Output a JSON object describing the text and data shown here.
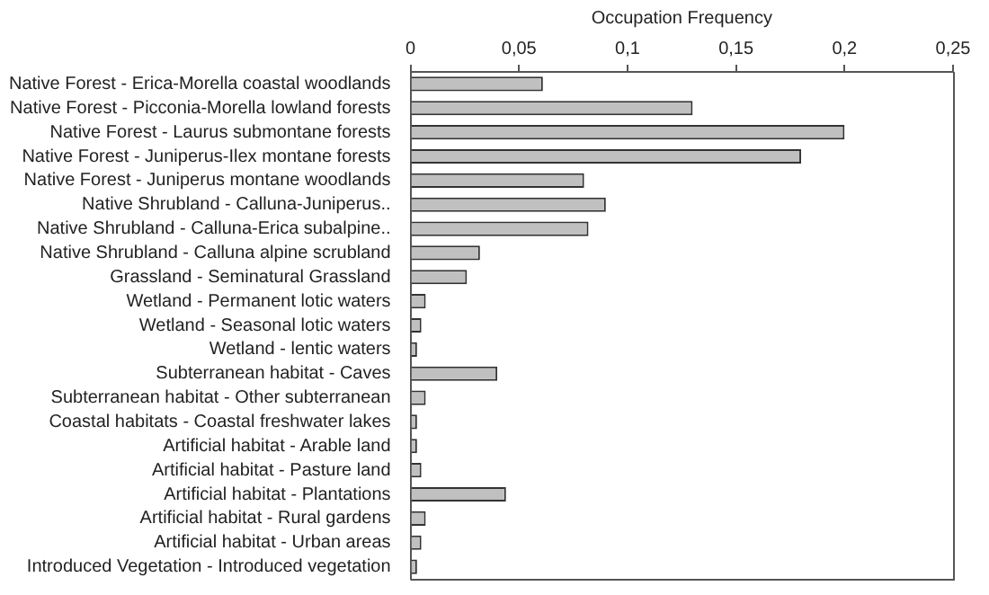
{
  "chart_data": {
    "type": "bar",
    "orientation": "horizontal",
    "xlabel": "Occupation Frequency",
    "categories": [
      "Native Forest - Erica-Morella coastal woodlands",
      "Native Forest - Picconia-Morella lowland forests",
      "Native Forest - Laurus submontane forests",
      "Native Forest - Juniperus-Ilex montane forests",
      "Native Forest - Juniperus montane woodlands",
      "Native Shrubland - Calluna-Juniperus..",
      "Native Shrubland - Calluna-Erica subalpine..",
      "Native Shrubland - Calluna alpine scrubland",
      "Grassland - Seminatural Grassland",
      "Wetland - Permanent lotic waters",
      "Wetland - Seasonal lotic waters",
      "Wetland - lentic waters",
      "Subterranean habitat - Caves",
      "Subterranean habitat - Other subterranean",
      "Coastal habitats - Coastal freshwater lakes",
      "Artificial habitat - Arable land",
      "Artificial habitat - Pasture land",
      "Artificial habitat - Plantations",
      "Artificial habitat - Rural gardens",
      "Artificial habitat - Urban areas",
      "Introduced Vegetation - Introduced vegetation"
    ],
    "values": [
      0.061,
      0.13,
      0.2,
      0.18,
      0.08,
      0.09,
      0.082,
      0.032,
      0.026,
      0.007,
      0.005,
      0.003,
      0.04,
      0.007,
      0.003,
      0.003,
      0.005,
      0.044,
      0.007,
      0.005,
      0.003
    ],
    "color": "#c0c0c0",
    "xlim": [
      0,
      0.25
    ],
    "xticks": [
      0,
      {
        "value": 0.05,
        "label": "0,05"
      },
      {
        "value": 0.1,
        "label": "0,1"
      },
      {
        "value": 0.15,
        "label": "0,15"
      },
      {
        "value": 0.2,
        "label": "0,2"
      },
      {
        "value": 0.25,
        "label": "0,25"
      }
    ],
    "grid": false,
    "legend": false
  }
}
